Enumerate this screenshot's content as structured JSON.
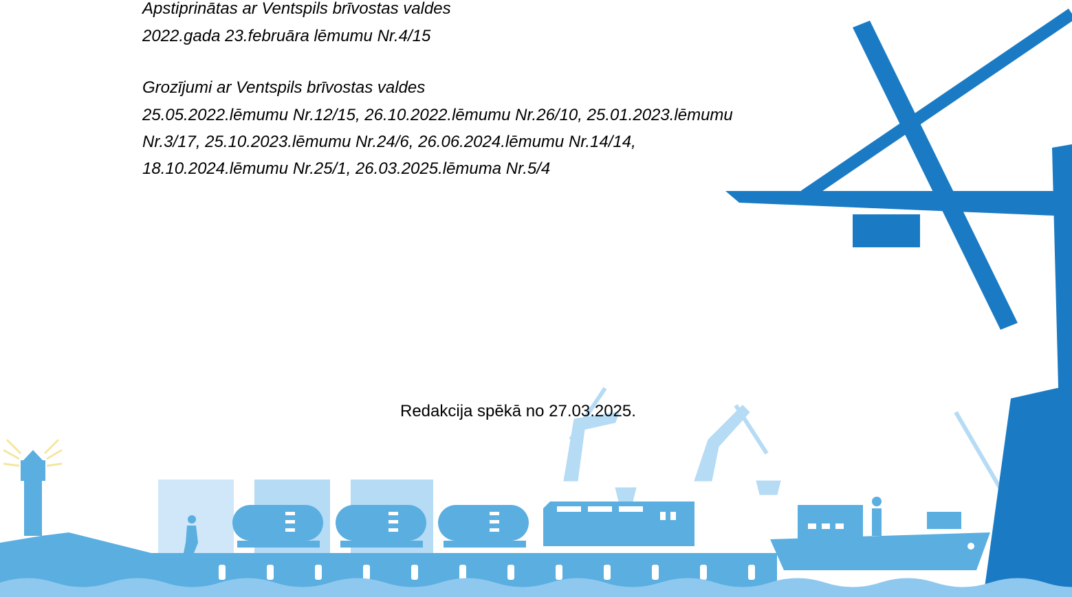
{
  "approval": {
    "lines": [
      "Apstiprinātas ar Ventspils brīvostas valdes",
      "2022.gada 23.februāra lēmumu Nr.4/15"
    ]
  },
  "amendments": {
    "lines": [
      "Grozījumi ar Ventspils brīvostas valdes",
      "25.05.2022.lēmumu Nr.12/15, 26.10.2022.lēmumu Nr.26/10, 25.01.2023.lēmumu",
      "Nr.3/17, 25.10.2023.lēmumu Nr.24/6, 26.06.2024.lēmumu Nr.14/14,",
      "18.10.2024.lēmumu Nr.25/1, 26.03.2025.lēmuma Nr.5/4"
    ]
  },
  "edition": "Redakcija spēkā no 27.03.2025."
}
